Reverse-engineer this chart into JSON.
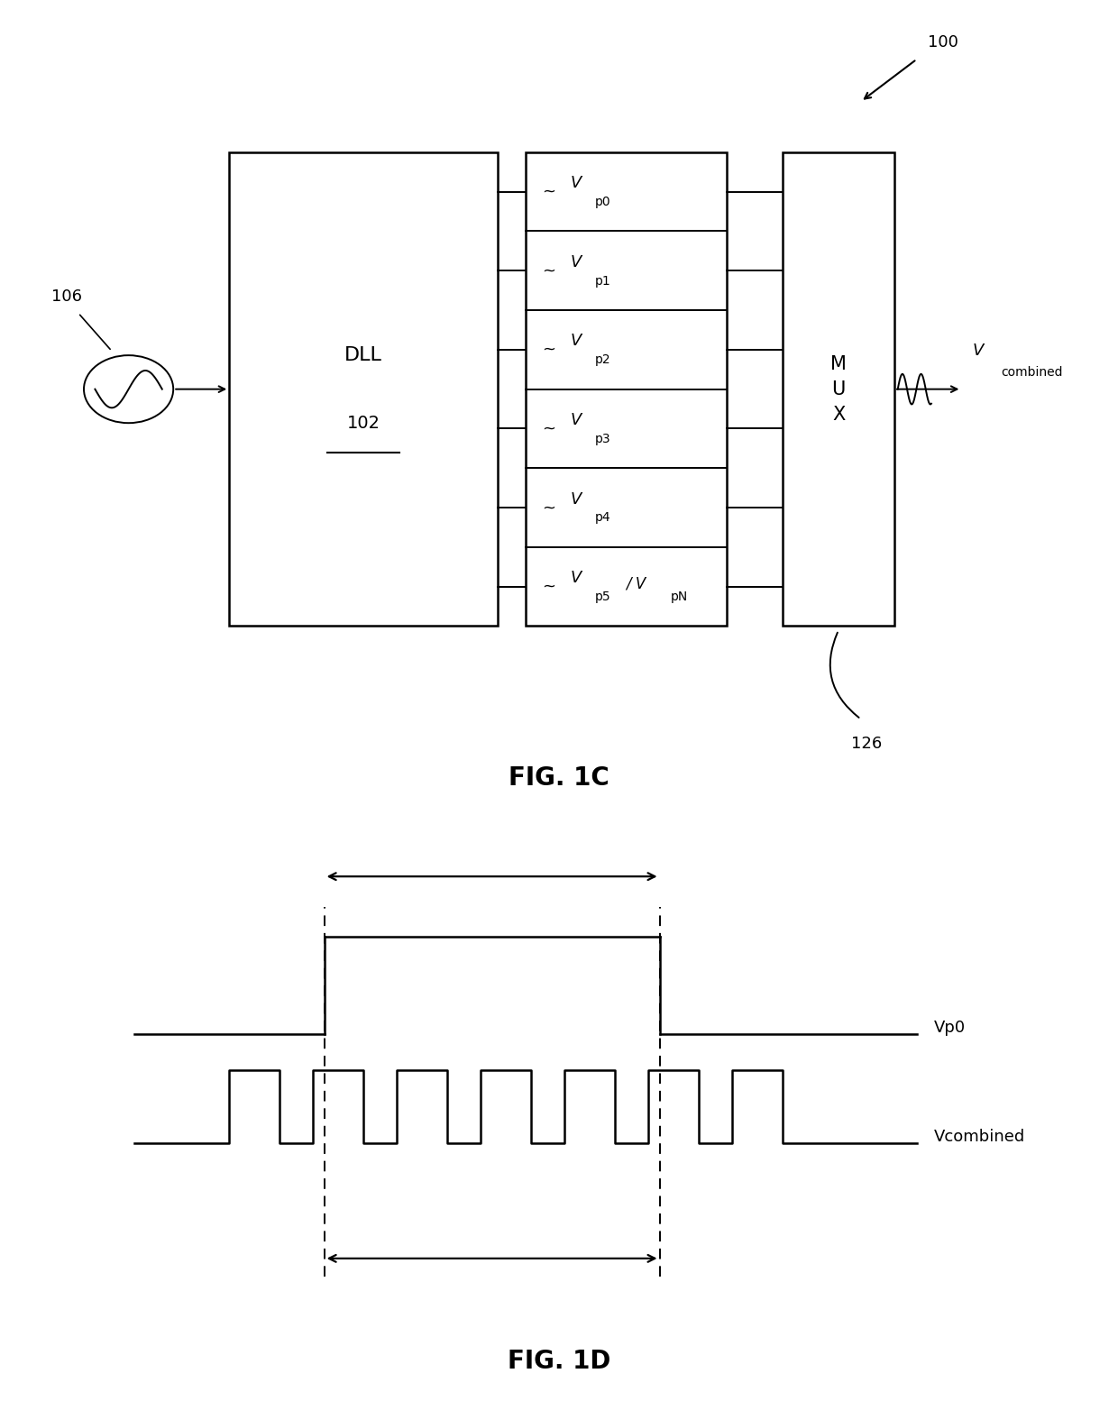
{
  "fig_width": 12.4,
  "fig_height": 15.64,
  "bg_color": "#ffffff",
  "line_color": "#000000",
  "fig1c_label": "FIG. 1C",
  "fig1d_label": "FIG. 1D",
  "dll_label": "DLL",
  "dll_ref": "102",
  "mux_label": "M\nU\nX",
  "ref_100": "100",
  "ref_106": "106",
  "ref_126": "126",
  "phase_labels": [
    "Vp0",
    "Vp1",
    "Vp2",
    "Vp3",
    "Vp4",
    "Vp5 / VpN"
  ],
  "vp0_label": "Vp0",
  "vcomb_label": "Vcombined",
  "vcombined_V": "V",
  "vcombined_sub": "combined"
}
